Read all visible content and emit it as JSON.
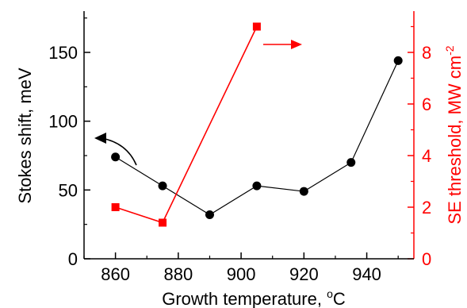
{
  "chart_data": {
    "type": "scatter",
    "xlabel": "Growth temperature, ",
    "xlabel_unit": "C",
    "xlabel_sup": "o",
    "ylabel_left": "Stokes shift, meV",
    "ylabel_right": "SE threshold, MW cm",
    "ylabel_right_sup": "-2",
    "xlim": [
      850,
      955
    ],
    "ylim_left": [
      0,
      180
    ],
    "ylim_right": [
      0,
      9.6
    ],
    "x_ticks": [
      860,
      880,
      900,
      920,
      940
    ],
    "y_left_ticks": [
      0,
      50,
      100,
      150
    ],
    "y_right_ticks": [
      0,
      2,
      4,
      6,
      8
    ],
    "grid": false,
    "colors": {
      "left": "#000000",
      "right": "#ff0000"
    },
    "series": [
      {
        "axis": "left",
        "marker": "circle",
        "color": "#000000",
        "points": [
          {
            "x": 860,
            "y": 74
          },
          {
            "x": 875,
            "y": 53
          },
          {
            "x": 890,
            "y": 32
          },
          {
            "x": 905,
            "y": 53
          },
          {
            "x": 920,
            "y": 49
          },
          {
            "x": 935,
            "y": 70
          },
          {
            "x": 950,
            "y": 144
          }
        ]
      },
      {
        "axis": "right",
        "marker": "square",
        "color": "#ff0000",
        "points": [
          {
            "x": 860,
            "y": 2.0
          },
          {
            "x": 875,
            "y": 1.4
          },
          {
            "x": 905,
            "y": 9.0
          }
        ]
      }
    ]
  }
}
